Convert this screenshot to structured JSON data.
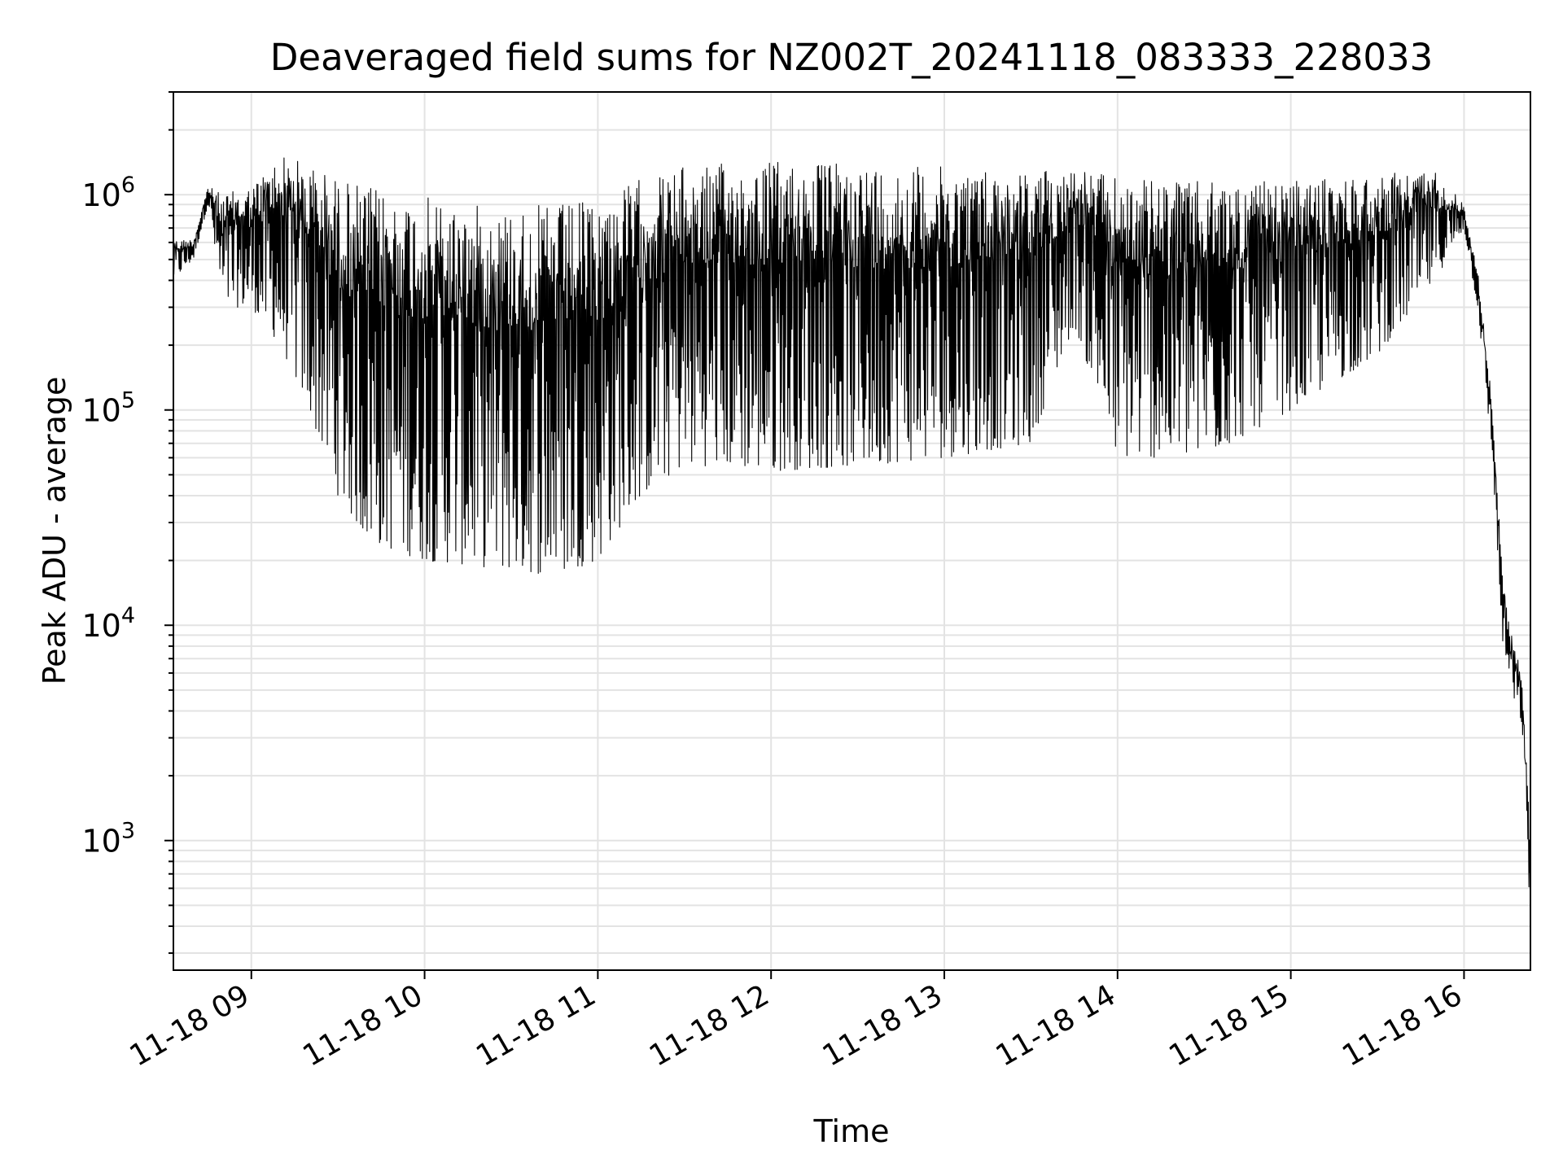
{
  "chart_data": {
    "type": "line",
    "title": "Deaveraged field sums for NZ002T_20241118_083333_228033",
    "xlabel": "Time",
    "ylabel": "Peak ADU - average",
    "xscale": "time",
    "yscale": "log",
    "xlim": [
      "2024-11-18 08:33",
      "2024-11-18 16:23"
    ],
    "ylim": [
      250,
      3000000
    ],
    "grid": true,
    "legend": "none",
    "x_tick_labels": [
      "11-18 09",
      "11-18 10",
      "11-18 11",
      "11-18 12",
      "11-18 13",
      "11-18 14",
      "11-18 15",
      "11-18 16"
    ],
    "x_tick_values": [
      "2024-11-18 09:00",
      "2024-11-18 10:00",
      "2024-11-18 11:00",
      "2024-11-18 12:00",
      "2024-11-18 13:00",
      "2024-11-18 14:00",
      "2024-11-18 15:00",
      "2024-11-18 16:00"
    ],
    "y_major_ticks": [
      1000,
      10000,
      100000,
      1000000
    ],
    "y_tick_labels": [
      {
        "base": "10",
        "exp": "3"
      },
      {
        "base": "10",
        "exp": "4"
      },
      {
        "base": "10",
        "exp": "5"
      },
      {
        "base": "10",
        "exp": "6"
      }
    ],
    "series": [
      {
        "color": "#000000",
        "x": [
          "2024-11-18 08:33",
          "2024-11-18 08:40",
          "2024-11-18 08:45",
          "2024-11-18 08:50",
          "2024-11-18 08:55",
          "2024-11-18 09:00",
          "2024-11-18 09:10",
          "2024-11-18 09:20",
          "2024-11-18 09:30",
          "2024-11-18 09:40",
          "2024-11-18 09:50",
          "2024-11-18 10:00",
          "2024-11-18 10:15",
          "2024-11-18 10:30",
          "2024-11-18 10:45",
          "2024-11-18 11:00",
          "2024-11-18 11:15",
          "2024-11-18 11:30",
          "2024-11-18 11:45",
          "2024-11-18 12:00",
          "2024-11-18 12:30",
          "2024-11-18 13:00",
          "2024-11-18 13:30",
          "2024-11-18 13:45",
          "2024-11-18 14:00",
          "2024-11-18 14:30",
          "2024-11-18 15:00",
          "2024-11-18 15:30",
          "2024-11-18 15:50",
          "2024-11-18 16:00",
          "2024-11-18 16:05",
          "2024-11-18 16:10",
          "2024-11-18 16:13",
          "2024-11-18 16:16",
          "2024-11-18 16:20",
          "2024-11-18 16:23"
        ],
        "upper": [
          620000,
          620000,
          1100000,
          1000000,
          1050000,
          1100000,
          1550000,
          1400000,
          1200000,
          1100000,
          1000000,
          980000,
          900000,
          880000,
          900000,
          950000,
          1200000,
          1350000,
          1400000,
          1450000,
          1400000,
          1350000,
          1300000,
          1350000,
          1200000,
          1150000,
          1150000,
          1250000,
          1300000,
          900000,
          420000,
          100000,
          20000,
          9500,
          6000,
          1000
        ],
        "lower": [
          400000,
          500000,
          900000,
          300000,
          300000,
          300000,
          200000,
          100000,
          40000,
          25000,
          22000,
          20000,
          19000,
          18000,
          17000,
          20000,
          40000,
          55000,
          55000,
          52000,
          55000,
          60000,
          70000,
          250000,
          60000,
          60000,
          100000,
          180000,
          400000,
          700000,
          280000,
          55000,
          9000,
          5000,
          3500,
          400
        ]
      }
    ]
  }
}
